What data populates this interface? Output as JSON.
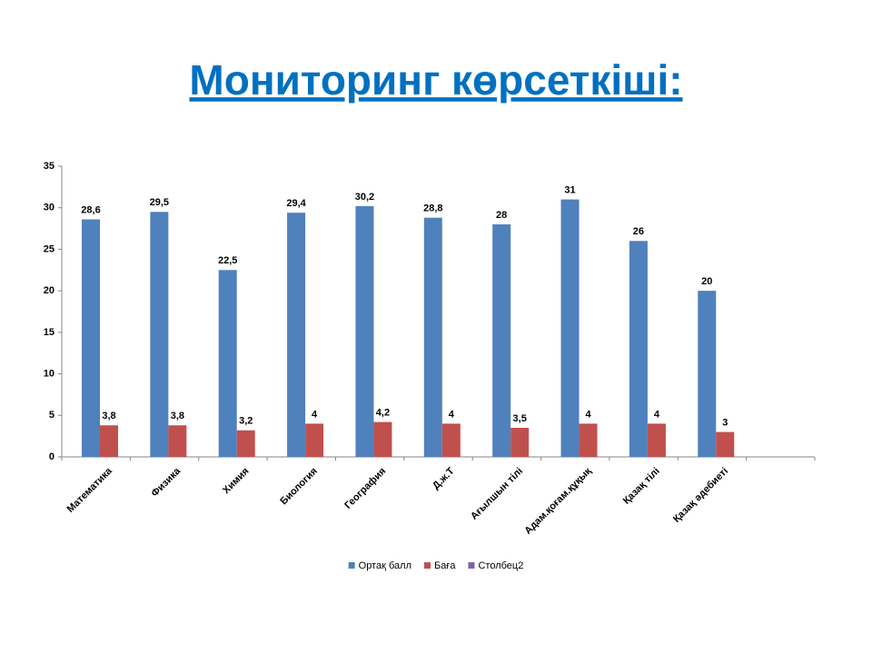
{
  "chart_data": {
    "type": "bar",
    "title": "Мониторинг көрсеткіші:",
    "categories": [
      "Математика",
      "Физика",
      "Химия",
      "Биология",
      "География",
      "Д.ж.Т",
      "Ағылшын тілі",
      "Адам.қоғам.құқық",
      "Қазақ тілі",
      "Қазақ әдебиеті",
      null
    ],
    "series": [
      {
        "name": "Ортақ балл",
        "color": "#4f81bd",
        "values": [
          28.6,
          29.5,
          22.5,
          29.4,
          30.2,
          28.8,
          28,
          31,
          26,
          20,
          null
        ],
        "value_labels": [
          "28,6",
          "29,5",
          "22,5",
          "29,4",
          "30,2",
          "28,8",
          "28",
          "31",
          "26",
          "20",
          null
        ]
      },
      {
        "name": "Баға",
        "color": "#c0504d",
        "values": [
          3.8,
          3.8,
          3.2,
          4,
          4.2,
          4,
          3.5,
          4,
          4,
          3,
          null
        ],
        "value_labels": [
          "3,8",
          "3,8",
          "3,2",
          "4",
          "4,2",
          "4",
          "3,5",
          "4",
          "4",
          "3",
          null
        ]
      },
      {
        "name": "Столбец2",
        "color": "#8064a2",
        "values": [
          null,
          null,
          null,
          null,
          null,
          null,
          null,
          null,
          null,
          null,
          null
        ]
      }
    ],
    "ylim": [
      0,
      35
    ],
    "yticks": [
      0,
      5,
      10,
      15,
      20,
      25,
      30,
      35
    ],
    "grid": false,
    "legend": "bottom"
  }
}
